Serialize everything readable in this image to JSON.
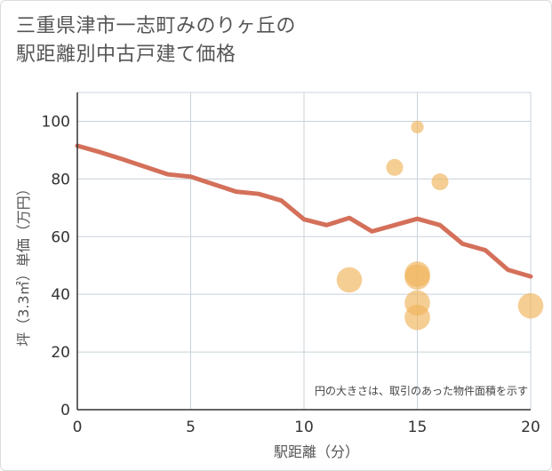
{
  "title_line1": "三重県津市一志町みのりヶ丘の",
  "title_line2": "駅距離別中古戸建て価格",
  "chart_data": {
    "type": "scatter",
    "title": "三重県津市一志町みのりヶ丘の駅距離別中古戸建て価格",
    "xlabel": "駅距離（分）",
    "ylabel": "坪（3.3㎡）単価（万円）",
    "xlim": [
      0,
      20
    ],
    "ylim": [
      0,
      110
    ],
    "xticks": [
      0,
      5,
      10,
      15,
      20
    ],
    "yticks": [
      0,
      20,
      40,
      60,
      80,
      100
    ],
    "grid": true,
    "note": "円の大きさは、取引のあった物件面積を示す",
    "colors": {
      "line": "#d4705a",
      "points": "#f0b45a",
      "grid": "#c8d3dc"
    },
    "trend_line": {
      "x": [
        0,
        1,
        2,
        3,
        4,
        5,
        6,
        7,
        8,
        9,
        10,
        11,
        12,
        13,
        14,
        15,
        16,
        17,
        18,
        19,
        20
      ],
      "y": [
        91.5,
        89.3,
        86.8,
        84.2,
        81.6,
        80.8,
        78.2,
        75.6,
        74.8,
        72.5,
        66,
        64,
        66.5,
        61.8,
        64,
        66.2,
        64,
        57.5,
        55.3,
        48.5,
        46.2
      ]
    },
    "points": [
      {
        "x": 12,
        "y": 45,
        "size": 3
      },
      {
        "x": 14,
        "y": 84,
        "size": 1
      },
      {
        "x": 15,
        "y": 98,
        "size": 0.4
      },
      {
        "x": 15,
        "y": 47,
        "size": 3
      },
      {
        "x": 15,
        "y": 46,
        "size": 3
      },
      {
        "x": 15,
        "y": 37,
        "size": 3
      },
      {
        "x": 15,
        "y": 32,
        "size": 3
      },
      {
        "x": 16,
        "y": 79,
        "size": 1
      },
      {
        "x": 20,
        "y": 36,
        "size": 3
      }
    ]
  }
}
